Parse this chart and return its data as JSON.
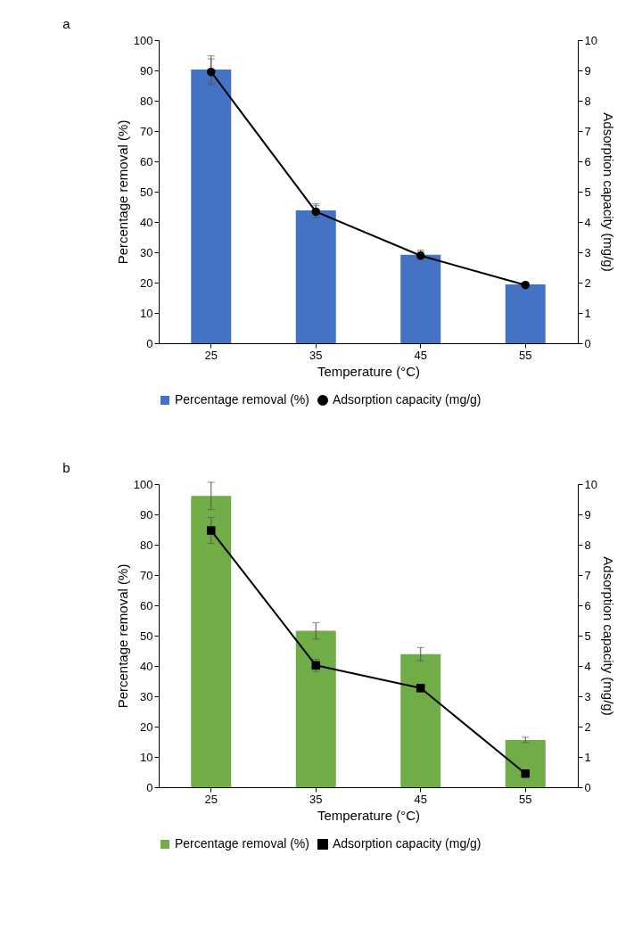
{
  "chart_data": [
    {
      "type": "bar",
      "title": "a",
      "xlabel": "Temperature (°C)",
      "ylabel": "Percentage removal (%)",
      "y2label": "Adsorption capacity (mg/g)",
      "categories": [
        "25",
        "35",
        "45",
        "55"
      ],
      "series": [
        {
          "name": "Percentage removal (%)",
          "color": "#4472c4",
          "values": [
            90.3,
            43.8,
            29.2,
            19.4
          ],
          "errors": [
            4.5,
            2.2,
            1.5,
            null
          ]
        },
        {
          "name": "Adsorption capacity (mg/g)",
          "type": "line",
          "axis": "y2",
          "marker": "circle",
          "color": "#000000",
          "values": [
            8.95,
            4.34,
            2.89,
            1.92
          ],
          "errors": [
            0.43,
            0.2,
            0.12,
            null
          ]
        }
      ],
      "ylim": [
        0,
        100
      ],
      "yticks": [
        0,
        10,
        20,
        30,
        40,
        50,
        60,
        70,
        80,
        90,
        100
      ],
      "y2lim": [
        0,
        10
      ],
      "y2ticks": [
        0,
        1,
        2,
        3,
        4,
        5,
        6,
        7,
        8,
        9,
        10
      ],
      "grid": false,
      "legend": "bottom"
    },
    {
      "type": "bar",
      "title": "b",
      "xlabel": "Temperature (°C)",
      "ylabel": "Percentage removal (%)",
      "y2label": "Adsorption capacity (mg/g)",
      "categories": [
        "25",
        "35",
        "45",
        "55"
      ],
      "series": [
        {
          "name": "Percentage removal (%)",
          "color": "#70ad47",
          "values": [
            96.1,
            51.6,
            43.9,
            15.6
          ],
          "errors": [
            4.5,
            2.7,
            2.2,
            0.9
          ]
        },
        {
          "name": "Adsorption capacity (mg/g)",
          "type": "line",
          "axis": "y2",
          "marker": "square",
          "color": "#000000",
          "values": [
            8.47,
            4.02,
            3.27,
            0.45
          ],
          "errors": [
            0.43,
            0.2,
            0.12,
            null
          ]
        }
      ],
      "ylim": [
        0,
        100
      ],
      "yticks": [
        0,
        10,
        20,
        30,
        40,
        50,
        60,
        70,
        80,
        90,
        100
      ],
      "y2lim": [
        0,
        10
      ],
      "y2ticks": [
        0,
        1,
        2,
        3,
        4,
        5,
        6,
        7,
        8,
        9,
        10
      ],
      "grid": false,
      "legend": "bottom"
    }
  ]
}
